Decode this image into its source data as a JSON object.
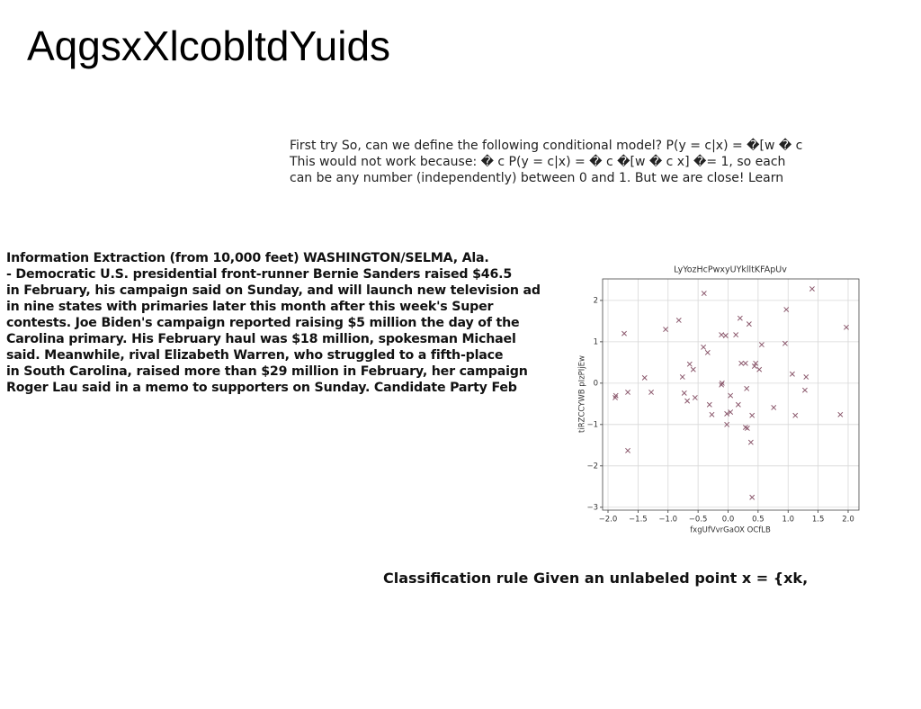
{
  "title": "AqgsxXlcobltdYuids",
  "paragraph1": {
    "lines": [
      "First try So, can we define the following conditional model? P(y = c|x) = �[w � c",
      "This would not work because: � c P(y = c|x) = � c �[w � c x] �= 1, so each",
      "can be any number (independently) between 0 and 1. But we are close! Learn"
    ]
  },
  "paragraph2": {
    "lines": [
      "Information Extraction (from 10,000 feet) WASHINGTON/SELMA, Ala.",
      "- Democratic U.S. presidential front-runner Bernie Sanders raised $46.5",
      "in February, his campaign said on Sunday, and will launch new television ad",
      "in nine states with primaries later this month after this week's Super",
      "contests. Joe Biden's campaign reported raising $5 million the day of the",
      "Carolina primary. His February haul was $18 million, spokesman Michael",
      "said. Meanwhile, rival Elizabeth Warren, who struggled to a fifth-place",
      "in South Carolina, raised more than $29 million in February, her campaign",
      "Roger Lau said in a memo to supporters on Sunday. Candidate Party Feb"
    ]
  },
  "caption": "Classification rule Given an unlabeled point x = {xk,",
  "chart_data": {
    "type": "scatter",
    "title": "LyYozHcPwxyUYklltKFApUv",
    "xlabel": "fxgUfVvrGaOX OCfLB",
    "ylabel": "tiRZCCYWB pIzPIjEw",
    "color": "#8c5a6e",
    "grid": true,
    "xlim": [
      -2.09,
      2.18
    ],
    "ylim": [
      -3.07,
      2.52
    ],
    "xticks": [
      {
        "value": -2,
        "label": "−2.0"
      },
      {
        "value": -1.5,
        "label": "−1.5"
      },
      {
        "value": -1,
        "label": "−1.0"
      },
      {
        "value": -0.5,
        "label": "−0.5"
      },
      {
        "value": 0,
        "label": "0.0"
      },
      0.5,
      {
        "value": 1,
        "label": "1.0"
      },
      1.5,
      {
        "value": 2,
        "label": "2.0"
      }
    ],
    "yticks": [
      {
        "value": -3,
        "label": "−3"
      },
      {
        "value": -2,
        "label": "−2"
      },
      {
        "value": -1,
        "label": "−1"
      },
      0,
      1,
      2
    ],
    "x": [
      -0.4,
      1.4,
      -1.73,
      -0.82,
      -1.04,
      0.2,
      0.35,
      0.97,
      1.97,
      -0.11,
      -0.04,
      0.13,
      0.56,
      0.95,
      -0.41,
      -0.34,
      -0.64,
      -0.58,
      -0.76,
      0.22,
      0.29,
      0.46,
      0.44,
      0.52,
      1.07,
      1.3,
      -1.39,
      -0.11,
      -0.1,
      0.31,
      1.28,
      -1.28,
      -1.67,
      -1.87,
      -1.88,
      -0.73,
      -0.68,
      -0.55,
      0.04,
      -0.31,
      0.17,
      -0.27,
      -0.02,
      0.04,
      0.4,
      0.76,
      1.12,
      1.87,
      -0.02,
      0.29,
      0.32,
      0.38,
      -1.67,
      0.4
    ],
    "y": [
      2.17,
      2.28,
      1.2,
      1.52,
      1.3,
      1.57,
      1.43,
      1.78,
      1.35,
      1.17,
      1.15,
      1.17,
      0.93,
      0.96,
      0.87,
      0.74,
      0.46,
      0.33,
      0.15,
      0.48,
      0.48,
      0.48,
      0.41,
      0.33,
      0.22,
      0.15,
      0.13,
      -0.04,
      0.0,
      -0.13,
      -0.17,
      -0.22,
      -0.22,
      -0.3,
      -0.35,
      -0.24,
      -0.43,
      -0.35,
      -0.3,
      -0.52,
      -0.52,
      -0.76,
      -0.74,
      -0.7,
      -0.78,
      -0.59,
      -0.78,
      -0.76,
      -1.0,
      -1.07,
      -1.09,
      -1.43,
      -1.63,
      -2.76
    ]
  }
}
